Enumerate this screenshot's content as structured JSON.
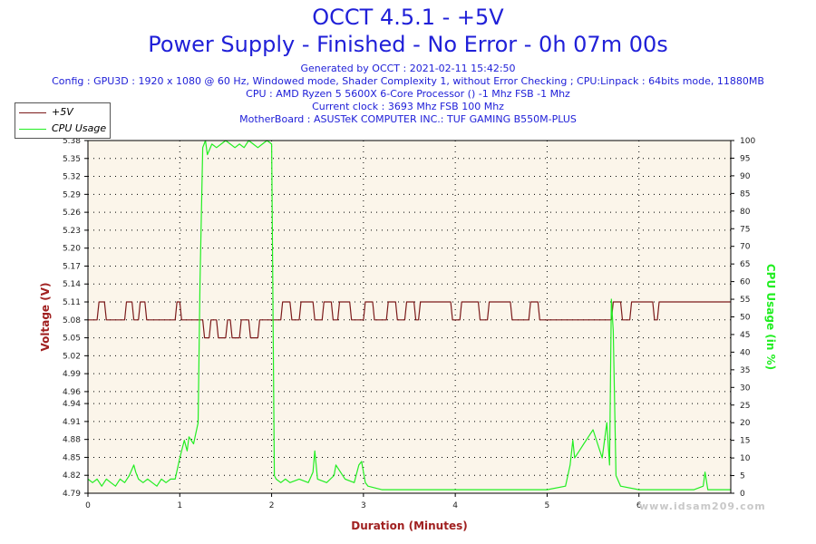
{
  "header": {
    "title": "OCCT 4.5.1 - +5V",
    "subtitle": "Power Supply - Finished - No Error - 0h 07m 00s",
    "info_lines": [
      "Generated by OCCT : 2021-02-11 15:42:50",
      "Config : GPU3D : 1920 x 1080 @ 60 Hz, Windowed mode, Shader Complexity 1, without Error Checking ; CPU:Linpack : 64bits mode, 11880MB",
      "CPU : AMD Ryzen 5 5600X 6-Core Processor () -1 Mhz FSB -1 Mhz",
      "Current clock : 3693 Mhz FSB 100 Mhz",
      "MotherBoard : ASUSTeK COMPUTER INC.: TUF GAMING B550M-PLUS"
    ]
  },
  "watermark": "www.idsam209.com",
  "colors": {
    "voltage": "#7b1a1a",
    "cpu": "#22ee22",
    "plot_bg": "#fbf5ea",
    "title": "#2020d8",
    "axis_title_y": "#a02020"
  },
  "chart_data": {
    "type": "line",
    "xlabel": "Duration (Minutes)",
    "ylabel_left": "Voltage (V)",
    "ylabel_right": "CPU Usage (in %)",
    "xlim": [
      0,
      7
    ],
    "ylim_left": [
      4.79,
      5.38
    ],
    "ylim_right": [
      0,
      100
    ],
    "grid": true,
    "legend_position": "top-left",
    "x_ticks": [
      0,
      1,
      2,
      3,
      4,
      5,
      6
    ],
    "y_ticks_left": [
      4.79,
      4.82,
      4.85,
      4.88,
      4.91,
      4.94,
      4.96,
      4.99,
      5.02,
      5.05,
      5.08,
      5.11,
      5.14,
      5.17,
      5.2,
      5.23,
      5.26,
      5.29,
      5.32,
      5.35,
      5.38
    ],
    "y_ticks_right": [
      0,
      5,
      10,
      15,
      20,
      25,
      30,
      35,
      40,
      45,
      50,
      55,
      60,
      65,
      70,
      75,
      80,
      85,
      90,
      95,
      100
    ],
    "series": [
      {
        "name": "+5V",
        "axis": "left",
        "x": [
          0,
          0.1,
          0.12,
          0.18,
          0.2,
          0.4,
          0.42,
          0.48,
          0.5,
          0.55,
          0.57,
          0.62,
          0.64,
          0.95,
          0.97,
          1.0,
          1.02,
          1.25,
          1.27,
          1.32,
          1.34,
          1.4,
          1.42,
          1.5,
          1.52,
          1.55,
          1.57,
          1.65,
          1.67,
          1.75,
          1.77,
          1.85,
          1.87,
          1.92,
          1.94,
          2.1,
          2.12,
          2.2,
          2.22,
          2.3,
          2.32,
          2.45,
          2.47,
          2.55,
          2.57,
          2.65,
          2.67,
          2.72,
          2.74,
          2.85,
          2.87,
          3.0,
          3.02,
          3.1,
          3.12,
          3.25,
          3.27,
          3.35,
          3.37,
          3.45,
          3.47,
          3.55,
          3.57,
          3.6,
          3.62,
          3.95,
          3.97,
          4.05,
          4.07,
          4.25,
          4.27,
          4.35,
          4.37,
          4.6,
          4.62,
          4.8,
          4.82,
          4.9,
          4.92,
          5.7,
          5.72,
          5.8,
          5.82,
          5.9,
          5.92,
          6.15,
          6.17,
          6.2,
          6.22,
          6.35,
          6.37,
          7.0
        ],
        "values": [
          5.08,
          5.08,
          5.11,
          5.11,
          5.08,
          5.08,
          5.11,
          5.11,
          5.08,
          5.08,
          5.11,
          5.11,
          5.08,
          5.08,
          5.11,
          5.11,
          5.08,
          5.08,
          5.05,
          5.05,
          5.08,
          5.08,
          5.05,
          5.05,
          5.08,
          5.08,
          5.05,
          5.05,
          5.08,
          5.08,
          5.05,
          5.05,
          5.08,
          5.08,
          5.08,
          5.08,
          5.11,
          5.11,
          5.08,
          5.08,
          5.11,
          5.11,
          5.08,
          5.08,
          5.11,
          5.11,
          5.08,
          5.08,
          5.11,
          5.11,
          5.08,
          5.08,
          5.11,
          5.11,
          5.08,
          5.08,
          5.11,
          5.11,
          5.08,
          5.08,
          5.11,
          5.11,
          5.08,
          5.08,
          5.11,
          5.11,
          5.08,
          5.08,
          5.11,
          5.11,
          5.08,
          5.08,
          5.11,
          5.11,
          5.08,
          5.08,
          5.11,
          5.11,
          5.08,
          5.08,
          5.11,
          5.11,
          5.08,
          5.08,
          5.11,
          5.11,
          5.08,
          5.08,
          5.11,
          5.11,
          5.11,
          5.11
        ]
      },
      {
        "name": "CPU Usage",
        "axis": "right",
        "x": [
          0,
          0.05,
          0.1,
          0.15,
          0.2,
          0.25,
          0.3,
          0.35,
          0.4,
          0.45,
          0.5,
          0.52,
          0.55,
          0.6,
          0.65,
          0.7,
          0.75,
          0.8,
          0.85,
          0.9,
          0.95,
          1.0,
          1.05,
          1.08,
          1.1,
          1.15,
          1.2,
          1.22,
          1.25,
          1.28,
          1.3,
          1.35,
          1.4,
          1.45,
          1.5,
          1.55,
          1.6,
          1.65,
          1.7,
          1.75,
          1.8,
          1.85,
          1.9,
          1.95,
          2.0,
          2.03,
          2.05,
          2.1,
          2.15,
          2.2,
          2.3,
          2.4,
          2.45,
          2.47,
          2.5,
          2.6,
          2.68,
          2.7,
          2.8,
          2.9,
          2.95,
          2.98,
          3.0,
          3.02,
          3.05,
          3.2,
          3.5,
          3.8,
          4.0,
          4.2,
          4.5,
          4.8,
          5.0,
          5.2,
          5.25,
          5.28,
          5.3,
          5.35,
          5.4,
          5.45,
          5.5,
          5.55,
          5.6,
          5.65,
          5.68,
          5.7,
          5.72,
          5.75,
          5.8,
          6.0,
          6.3,
          6.6,
          6.7,
          6.72,
          6.75,
          7.0
        ],
        "values": [
          4,
          3,
          4,
          2,
          4,
          3,
          2,
          4,
          3,
          5,
          8,
          6,
          4,
          3,
          4,
          3,
          2,
          4,
          3,
          4,
          4,
          10,
          15,
          12,
          16,
          14,
          20,
          60,
          98,
          100,
          96,
          99,
          98,
          99,
          100,
          99,
          98,
          99,
          98,
          100,
          99,
          98,
          99,
          100,
          99,
          5,
          4,
          3,
          4,
          3,
          4,
          3,
          6,
          12,
          4,
          3,
          5,
          8,
          4,
          3,
          8,
          9,
          6,
          3,
          2,
          1,
          1,
          1,
          1,
          1,
          1,
          1,
          1,
          2,
          8,
          15,
          10,
          12,
          14,
          16,
          18,
          14,
          10,
          20,
          8,
          55,
          46,
          5,
          2,
          1,
          1,
          1,
          2,
          6,
          1,
          1
        ]
      }
    ]
  }
}
